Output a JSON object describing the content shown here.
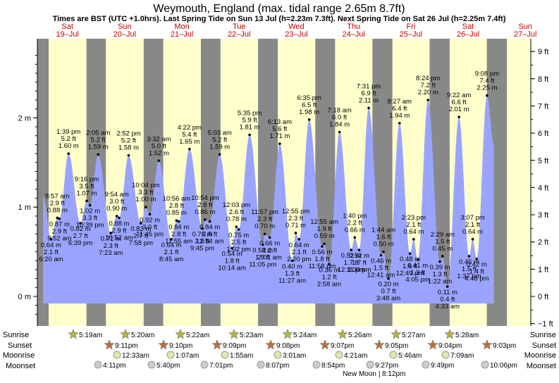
{
  "title": "Weymouth, England (max. tidal range 2.65m 8.7ft)",
  "subtitle": "Times are BST (UTC +1.0hrs). Last Spring Tide on Sun 13 Jul (h=2.23m 7.3ft). Next Spring Tide on Sat 26 Jul (h=2.25m 7.4ft)",
  "colors": {
    "tide": "#9aa4ff",
    "day": "#ffffcc",
    "night": "#888888",
    "sunrise_star": "#b5b53a",
    "sunset_star": "#c0703a",
    "moon": "#e6e6aa",
    "moonset": "#cccccc",
    "day_label": "#cc0000"
  },
  "chart_data": {
    "type": "area",
    "ylabel_left_unit": "m",
    "ylabel_right_unit": "ft",
    "ylim_m": [
      -0.31,
      2.8
    ],
    "left_ticks": [
      "0 m",
      "1 m",
      "2 m"
    ],
    "right_ticks": [
      "−1 ft",
      "0 ft",
      "1 ft",
      "2 ft",
      "3 ft",
      "4 ft",
      "5 ft",
      "6 ft",
      "7 ft",
      "8 ft",
      "9 ft"
    ],
    "days": [
      {
        "dow": "Sat",
        "date": "19–Jul"
      },
      {
        "dow": "Sun",
        "date": "20–Jul"
      },
      {
        "dow": "Mon",
        "date": "21–Jul"
      },
      {
        "dow": "Tue",
        "date": "22–Jul"
      },
      {
        "dow": "Wed",
        "date": "23–Jul"
      },
      {
        "dow": "Thu",
        "date": "24–Jul"
      },
      {
        "dow": "Fri",
        "date": "25–Jul"
      },
      {
        "dow": "Sat",
        "date": "26–Jul"
      },
      {
        "dow": "Sun",
        "date": "27–Jul"
      }
    ],
    "tides": [
      {
        "time": "6:20 am",
        "m": "0.64 m",
        "ft": "2.1 ft",
        "h": 0.64,
        "t": 6.33,
        "type": "low"
      },
      {
        "time": "8:57 am",
        "m": "0.88 m",
        "ft": "2.9 ft",
        "h": 0.88,
        "t": 8.95,
        "type": "high"
      },
      {
        "time": "9:52 am",
        "m": "0.87 m",
        "ft": "2.9 ft",
        "h": 0.87,
        "t": 9.87,
        "type": "low"
      },
      {
        "time": "1:39 pm",
        "m": "1.60 m",
        "ft": "5.2 ft",
        "h": 1.6,
        "t": 13.65,
        "type": "high"
      },
      {
        "time": "6:39 pm",
        "m": "0.82 m",
        "ft": "2.7 ft",
        "h": 0.82,
        "t": 18.65,
        "type": "low"
      },
      {
        "time": "9:16 pm",
        "m": "1.07 m",
        "ft": "3.5 ft",
        "h": 1.07,
        "t": 21.27,
        "type": "high"
      },
      {
        "time": "10:39 pm",
        "m": "1.02 m",
        "ft": "3.3 ft",
        "h": 1.02,
        "t": 22.65,
        "type": "low"
      },
      {
        "time": "2:05 am",
        "m": "1.59 m",
        "ft": "5.2 ft",
        "h": 1.59,
        "t": 26.08,
        "type": "high"
      },
      {
        "time": "7:23 am",
        "m": "0.71 m",
        "ft": "2.3 ft",
        "h": 0.71,
        "t": 31.38,
        "type": "low"
      },
      {
        "time": "9:54 am",
        "m": "0.90 m",
        "ft": "3.0 ft",
        "h": 0.9,
        "t": 33.9,
        "type": "high"
      },
      {
        "time": "10:52 am",
        "m": "0.88 m",
        "ft": "2.9 ft",
        "h": 0.88,
        "t": 34.87,
        "type": "low"
      },
      {
        "time": "2:52 pm",
        "m": "1.58 m",
        "ft": "5.2 ft",
        "h": 1.58,
        "t": 38.87,
        "type": "high"
      },
      {
        "time": "7:58 pm",
        "m": "0.82 m",
        "ft": "2.7 ft",
        "h": 0.82,
        "t": 43.97,
        "type": "low"
      },
      {
        "time": "10:04 pm",
        "m": "1.00 m",
        "ft": "3.3 ft",
        "h": 1.0,
        "t": 46.07,
        "type": "high"
      },
      {
        "time": "11:45 pm",
        "m": "0.92 m",
        "ft": "3.0 ft",
        "h": 0.92,
        "t": 47.75,
        "type": "low"
      },
      {
        "time": "3:32 am",
        "m": "1.52 m",
        "ft": "5.0 ft",
        "h": 1.52,
        "t": 51.53,
        "type": "high"
      },
      {
        "time": "8:45 am",
        "m": "0.64 m",
        "ft": "2.1 ft",
        "h": 0.64,
        "t": 56.75,
        "type": "low"
      },
      {
        "time": "10:56 am",
        "m": "0.85 m",
        "ft": "2.8 ft",
        "h": 0.85,
        "t": 58.93,
        "type": "high"
      },
      {
        "time": "11:55 am",
        "m": "0.84 m",
        "ft": "2.8 ft",
        "h": 0.84,
        "t": 59.92,
        "type": "low"
      },
      {
        "time": "4:22 pm",
        "m": "1.65 m",
        "ft": "5.4 ft",
        "h": 1.65,
        "t": 64.37,
        "type": "high"
      },
      {
        "time": "9:45 pm",
        "m": "0.76 m",
        "ft": "2.5 ft",
        "h": 0.76,
        "t": 69.75,
        "type": "low"
      },
      {
        "time": "10:54 pm",
        "m": "0.86 m",
        "ft": "2.8 ft",
        "h": 0.86,
        "t": 70.9,
        "type": "high"
      },
      {
        "time": "12:54 am",
        "m": "0.84 m",
        "ft": "2.8 ft",
        "h": 0.84,
        "t": 72.9,
        "type": "low"
      },
      {
        "time": "5:03 am",
        "m": "1.59 m",
        "ft": "5.2 ft",
        "h": 1.59,
        "t": 77.05,
        "type": "high"
      },
      {
        "time": "10:14 am",
        "m": "0.54 m",
        "ft": "1.8 ft",
        "h": 0.54,
        "t": 82.23,
        "type": "low"
      },
      {
        "time": "12:03 pm",
        "m": "0.78 m",
        "ft": "2.6 ft",
        "h": 0.78,
        "t": 84.05,
        "type": "high"
      },
      {
        "time": "1:02 pm",
        "m": "0.75 m",
        "ft": "2.5 ft",
        "h": 0.75,
        "t": 85.03,
        "type": "low"
      },
      {
        "time": "5:35 pm",
        "m": "1.81 m",
        "ft": "5.9 ft",
        "h": 1.81,
        "t": 89.58,
        "type": "high"
      },
      {
        "time": "11:05 pm",
        "m": "0.58 m",
        "ft": "1.9 ft",
        "h": 0.58,
        "t": 95.08,
        "type": "low"
      },
      {
        "time": "11:57 pm",
        "m": "0.70 m",
        "ft": "2.3 ft",
        "h": 0.7,
        "t": 95.95,
        "type": "high"
      },
      {
        "time": "2:01 am",
        "m": "0.66 m",
        "ft": "2.2 ft",
        "h": 0.66,
        "t": 98.02,
        "type": "low"
      },
      {
        "time": "6:13 am",
        "m": "1.71 m",
        "ft": "5.6 ft",
        "h": 1.71,
        "t": 102.22,
        "type": "high"
      },
      {
        "time": "11:27 am",
        "m": "0.40 m",
        "ft": "1.3 ft",
        "h": 0.4,
        "t": 107.45,
        "type": "low"
      },
      {
        "time": "12:55 pm",
        "m": "0.71 m",
        "ft": "2.3 ft",
        "h": 0.71,
        "t": 108.92,
        "type": "high"
      },
      {
        "time": "2:20 pm",
        "m": "0.64 m",
        "ft": "2.1 ft",
        "h": 0.64,
        "t": 110.33,
        "type": "low"
      },
      {
        "time": "6:35 pm",
        "m": "1.98 m",
        "ft": "6.5 ft",
        "h": 1.98,
        "t": 114.58,
        "type": "high"
      },
      {
        "time": "11:58 pm",
        "m": "0.56 m",
        "ft": "1.8 ft",
        "h": 0.56,
        "t": 119.97,
        "type": "low"
      },
      {
        "time": "12:55 am",
        "m": "0.59 m",
        "ft": "1.9 ft",
        "h": 0.59,
        "t": 120.92,
        "type": "high"
      },
      {
        "time": "2:58 am",
        "m": "0.36 m",
        "ft": "1.2 ft",
        "h": 0.36,
        "t": 122.97,
        "type": "low"
      },
      {
        "time": "7:18 am",
        "m": "1.84 m",
        "ft": "6.0 ft",
        "h": 1.84,
        "t": 127.3,
        "type": "high"
      },
      {
        "time": "12:11 pm",
        "m": "0.52 m",
        "ft": "1.7 ft",
        "h": 0.52,
        "t": 132.18,
        "type": "low"
      },
      {
        "time": "1:40 pm",
        "m": "0.66 m",
        "ft": "2.2 ft",
        "h": 0.66,
        "t": 133.67,
        "type": "high"
      },
      {
        "time": "3:30 pm",
        "m": "0.52 m",
        "ft": "1.7 ft",
        "h": 0.52,
        "t": 135.5,
        "type": "low"
      },
      {
        "time": "7:31 pm",
        "m": "2.11 m",
        "ft": "6.9 ft",
        "h": 2.11,
        "t": 139.52,
        "type": "high"
      },
      {
        "time": "12:41 am",
        "m": "0.46 m",
        "ft": "1.5 ft",
        "h": 0.46,
        "t": 144.68,
        "type": "low"
      },
      {
        "time": "1:44 am",
        "m": "0.50 m",
        "ft": "1.6 ft",
        "h": 0.5,
        "t": 145.73,
        "type": "high"
      },
      {
        "time": "3:48 am",
        "m": "0.20 m",
        "ft": "0.7 ft",
        "h": 0.2,
        "t": 147.8,
        "type": "low"
      },
      {
        "time": "8:27 am",
        "m": "1.94 m",
        "ft": "6.4 ft",
        "h": 1.94,
        "t": 152.45,
        "type": "high"
      },
      {
        "time": "12:49 pm",
        "m": "0.48 m",
        "ft": "1.6 ft",
        "h": 0.48,
        "t": 156.82,
        "type": "low"
      },
      {
        "time": "2:23 pm",
        "m": "0.64 m",
        "ft": "2.1 ft",
        "h": 0.64,
        "t": 158.38,
        "type": "high"
      },
      {
        "time": "4:05 pm",
        "m": "0.41 m",
        "ft": "1.3 ft",
        "h": 0.41,
        "t": 160.08,
        "type": "low"
      },
      {
        "time": "8:24 pm",
        "m": "2.20 m",
        "ft": "7.2 ft",
        "h": 2.2,
        "t": 164.4,
        "type": "high"
      },
      {
        "time": "1:22 am",
        "m": "0.39 m",
        "ft": "1.3 ft",
        "h": 0.39,
        "t": 169.37,
        "type": "low"
      },
      {
        "time": "2:29 am",
        "m": "0.45 m",
        "ft": "1.5 ft",
        "h": 0.45,
        "t": 170.48,
        "type": "high"
      },
      {
        "time": "4:33 am",
        "m": "0.11 m",
        "ft": "0.4 ft",
        "h": 0.11,
        "t": 172.55,
        "type": "low"
      },
      {
        "time": "9:22 am",
        "m": "2.01 m",
        "ft": "6.6 ft",
        "h": 2.01,
        "t": 177.37,
        "type": "high"
      },
      {
        "time": "1:37 pm",
        "m": "0.45 m",
        "ft": "1.5 ft",
        "h": 0.45,
        "t": 181.62,
        "type": "low"
      },
      {
        "time": "3:07 pm",
        "m": "0.64 m",
        "ft": "2.1 ft",
        "h": 0.64,
        "t": 183.12,
        "type": "high"
      },
      {
        "time": "4:48 pm",
        "m": "0.42 m",
        "ft": "1.4 ft",
        "h": 0.42,
        "t": 184.8,
        "type": "low"
      },
      {
        "time": "9:08 pm",
        "m": "2.25 m",
        "ft": "7.4 ft",
        "h": 2.25,
        "t": 189.13,
        "type": "high"
      }
    ],
    "sunrise": [
      "5:19am",
      "5:20am",
      "5:22am",
      "5:23am",
      "5:24am",
      "5:26am",
      "5:27am",
      "5:28am"
    ],
    "sunset": [
      "9:11pm",
      "9:10pm",
      "9:09pm",
      "9:08pm",
      "9:07pm",
      "9:05pm",
      "9:04pm",
      "9:03pm"
    ],
    "moonrise": [
      "12:33am",
      "1:07am",
      "1:55am",
      "3:01am",
      "4:21am",
      "5:46am",
      "7:09am"
    ],
    "moonset": [
      "4:11pm",
      "5:40pm",
      "7:01pm",
      "8:07pm",
      "8:54pm",
      "9:27pm",
      "9:49pm",
      "10:06pm"
    ],
    "new_moon_label": "New Moon",
    "new_moon_time": "8:12pm"
  },
  "row_labels": {
    "sunrise": "Sunrise",
    "sunset": "Sunset",
    "moonrise": "Moonrise",
    "moonset": "Moonset"
  }
}
